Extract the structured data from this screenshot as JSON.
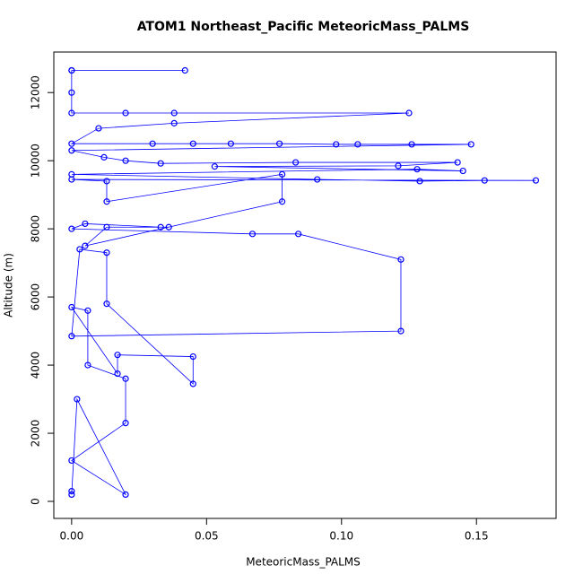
{
  "chart_data": {
    "type": "line",
    "title": "ATOM1 Northeast_Pacific MeteoricMass_PALMS",
    "x_label": "MeteoricMass_PALMS",
    "y_label": "Altitude (m)",
    "color": "#0000ff",
    "xlim": [
      -0.0066,
      0.1795
    ],
    "ylim": [
      -500,
      13190
    ],
    "xticks": [
      {
        "value": 0,
        "label": "0.00"
      },
      {
        "value": 0.05,
        "label": "0.05"
      },
      {
        "value": 0.1,
        "label": "0.10"
      },
      {
        "value": 0.15,
        "label": "0.15"
      }
    ],
    "yticks": [
      0,
      2000,
      4000,
      6000,
      8000,
      10000,
      12000
    ],
    "x": [
      0,
      0.042,
      0,
      0,
      0,
      0.02,
      0.038,
      0.125,
      0.038,
      0.01,
      0,
      0.03,
      0.045,
      0.059,
      0.077,
      0.098,
      0.106,
      0.126,
      0.148,
      0,
      0.012,
      0.02,
      0.033,
      0.083,
      0.143,
      0.121,
      0.053,
      0.145,
      0.128,
      0,
      0.091,
      0.129,
      0.153,
      0.172,
      0,
      0.013,
      0.013,
      0.078,
      0.078,
      0.005,
      0.013,
      0.036,
      0.033,
      0.005,
      0,
      0.067,
      0.084,
      0.122,
      0.122,
      0,
      0.003,
      0.013,
      0.013,
      0.045,
      0.045,
      0.017,
      0.017,
      0,
      0.006,
      0.006,
      0.02,
      0.02,
      0,
      0.02,
      0.002,
      0,
      0
    ],
    "values": [
      12650,
      12650,
      12650,
      12000,
      11400,
      11400,
      11400,
      11400,
      11100,
      10950,
      10500,
      10500,
      10500,
      10500,
      10500,
      10480,
      10480,
      10480,
      10480,
      10300,
      10100,
      10000,
      9920,
      9950,
      9950,
      9850,
      9830,
      9700,
      9750,
      9600,
      9450,
      9400,
      9420,
      9420,
      9450,
      9400,
      8800,
      9600,
      8800,
      7500,
      8050,
      8050,
      8050,
      8150,
      8000,
      7850,
      7850,
      7100,
      5000,
      4850,
      7400,
      7300,
      5800,
      3450,
      4250,
      4300,
      3750,
      5700,
      5600,
      4000,
      3600,
      2300,
      1200,
      200,
      3000,
      200,
      300
    ]
  }
}
